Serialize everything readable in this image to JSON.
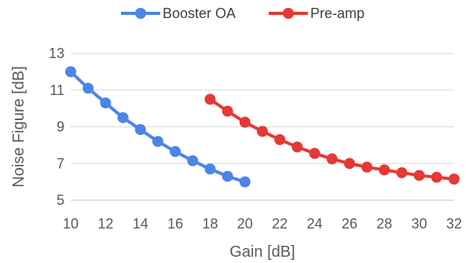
{
  "chart_data": {
    "type": "line",
    "xlabel": "Gain [dB]",
    "ylabel": "Noise Figure [dB]",
    "xlim": [
      10,
      32
    ],
    "ylim": [
      5,
      13
    ],
    "x_ticks": [
      10,
      12,
      14,
      16,
      18,
      20,
      22,
      24,
      26,
      28,
      30,
      32
    ],
    "y_ticks": [
      5,
      7,
      9,
      11,
      13
    ],
    "grid": "horizontal",
    "legend_position": "top",
    "series": [
      {
        "name": "Booster OA",
        "color": "#4a86e8",
        "x": [
          10,
          11,
          12,
          13,
          14,
          15,
          16,
          17,
          18,
          19,
          20
        ],
        "y": [
          12.0,
          11.1,
          10.3,
          9.5,
          8.85,
          8.2,
          7.65,
          7.15,
          6.7,
          6.3,
          6.0
        ]
      },
      {
        "name": "Pre-amp",
        "color": "#e53935",
        "x": [
          18,
          19,
          20,
          21,
          22,
          23,
          24,
          25,
          26,
          27,
          28,
          29,
          30,
          31,
          32
        ],
        "y": [
          10.5,
          9.85,
          9.25,
          8.75,
          8.3,
          7.9,
          7.55,
          7.25,
          7.0,
          6.8,
          6.65,
          6.5,
          6.35,
          6.25,
          6.15
        ]
      }
    ]
  }
}
